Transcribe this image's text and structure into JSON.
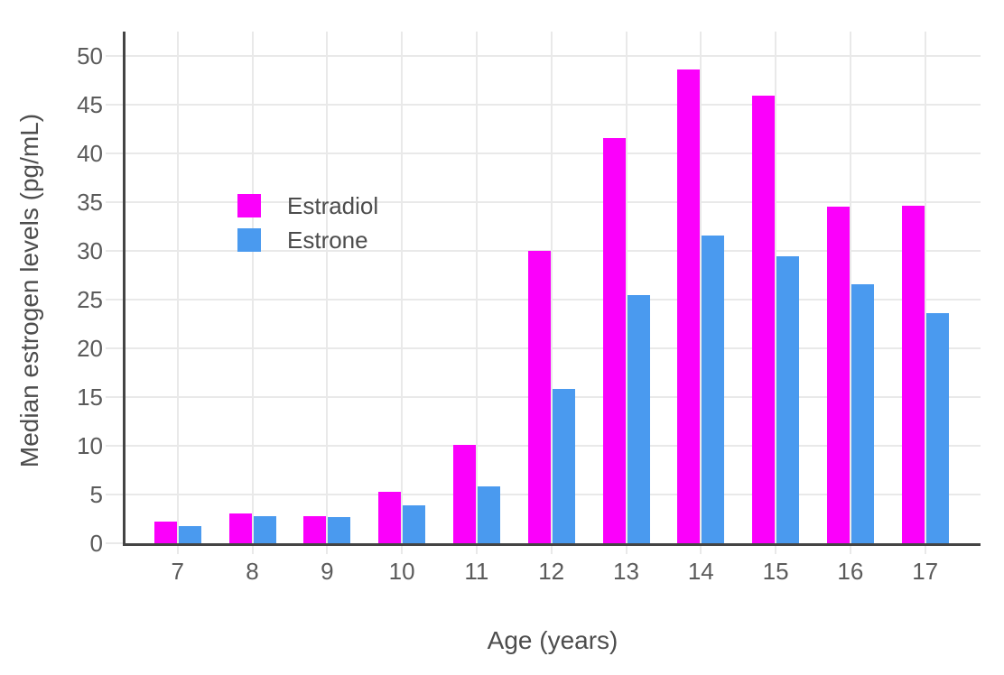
{
  "chart_data": {
    "type": "bar",
    "title": "",
    "categories": [
      "7",
      "8",
      "9",
      "10",
      "11",
      "12",
      "13",
      "14",
      "15",
      "16",
      "17"
    ],
    "series": [
      {
        "name": "Estradiol",
        "color": "#fb00fb",
        "values": [
          2.2,
          3.1,
          2.8,
          5.3,
          10.1,
          30.0,
          41.6,
          48.6,
          45.9,
          34.5,
          34.6
        ]
      },
      {
        "name": "Estrone",
        "color": "#4a9aef",
        "values": [
          1.8,
          2.8,
          2.7,
          3.9,
          5.8,
          15.8,
          25.5,
          31.6,
          29.4,
          26.6,
          23.6
        ]
      }
    ],
    "xlabel": "Age (years)",
    "ylabel": "Median estrogen levels (pg/mL)",
    "ylim": [
      0,
      52.5
    ],
    "yticks": [
      0,
      5,
      10,
      15,
      20,
      25,
      30,
      35,
      40,
      45,
      50
    ],
    "grid": true,
    "legend_position": "inside-top-left",
    "colors": {
      "axis_line": "#444444",
      "gridline": "#e9e9e9",
      "tick_label": "#5b5b5b",
      "axis_title": "#4d4d4d",
      "background": "#ffffff"
    }
  }
}
